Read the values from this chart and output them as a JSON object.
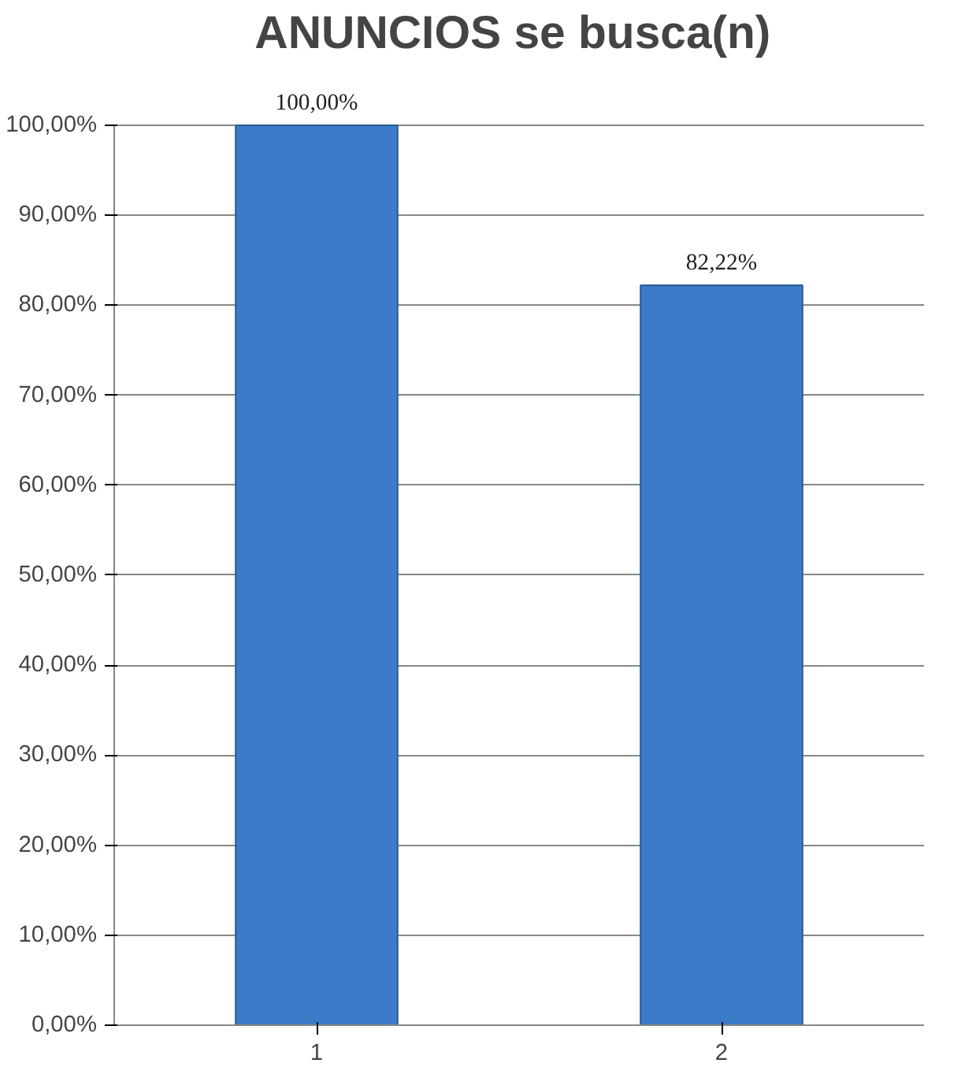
{
  "chart_data": {
    "type": "bar",
    "title": "ANUNCIOS  se busca(n)",
    "categories": [
      "1",
      "2"
    ],
    "values": [
      100,
      82.22
    ],
    "value_labels": [
      "100,00%",
      "82,22%"
    ],
    "color": "#3b7bc8",
    "ylim": [
      0,
      100
    ],
    "yticks": [
      {
        "value": 0,
        "label": "0,00%"
      },
      {
        "value": 10,
        "label": "10,00%"
      },
      {
        "value": 20,
        "label": "20,00%"
      },
      {
        "value": 30,
        "label": "30,00%"
      },
      {
        "value": 40,
        "label": "40,00%"
      },
      {
        "value": 50,
        "label": "50,00%"
      },
      {
        "value": 60,
        "label": "60,00%"
      },
      {
        "value": 70,
        "label": "70,00%"
      },
      {
        "value": 80,
        "label": "80,00%"
      },
      {
        "value": 90,
        "label": "90,00%"
      },
      {
        "value": 100,
        "label": "100,00%"
      }
    ],
    "grid": "y"
  }
}
